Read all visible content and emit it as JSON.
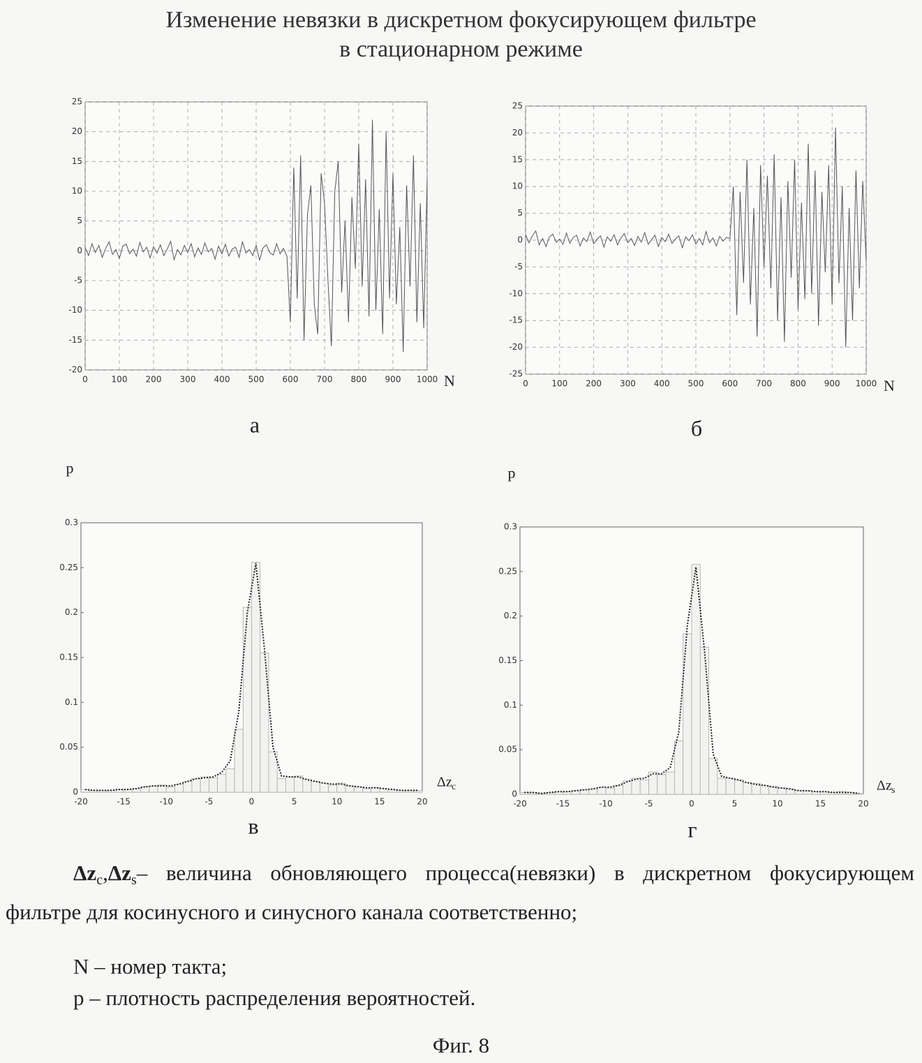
{
  "title": [
    "Изменение невязки в дискретном фокусирующем фильтре",
    "в стационарном режиме"
  ],
  "chart_data": [
    {
      "type": "line",
      "label": "а",
      "xlabel": "N",
      "grid": true,
      "color": "#555555",
      "xlim": [
        0,
        1000
      ],
      "xticks": [
        0,
        100,
        200,
        300,
        400,
        500,
        600,
        700,
        800,
        900,
        1000
      ],
      "ylim": [
        -20,
        25
      ],
      "yticks": [
        -20,
        -15,
        -10,
        -5,
        0,
        5,
        10,
        15,
        20,
        25
      ],
      "x": [
        0,
        10,
        20,
        30,
        40,
        50,
        60,
        70,
        80,
        90,
        100,
        110,
        120,
        130,
        140,
        150,
        160,
        170,
        180,
        190,
        200,
        210,
        220,
        230,
        240,
        250,
        260,
        270,
        280,
        290,
        300,
        310,
        320,
        330,
        340,
        350,
        360,
        370,
        380,
        390,
        400,
        410,
        420,
        430,
        440,
        450,
        460,
        470,
        480,
        490,
        500,
        510,
        520,
        530,
        540,
        550,
        560,
        570,
        580,
        590,
        600,
        610,
        620,
        630,
        640,
        650,
        660,
        670,
        680,
        690,
        700,
        710,
        720,
        730,
        740,
        750,
        760,
        770,
        780,
        790,
        800,
        810,
        820,
        830,
        840,
        850,
        860,
        870,
        880,
        890,
        900,
        910,
        920,
        930,
        940,
        950,
        960,
        970,
        980,
        990,
        1000
      ],
      "values": [
        0.5,
        -0.8,
        1.2,
        -0.3,
        0.9,
        -1.1,
        0.4,
        1.5,
        -0.6,
        0.2,
        -1.3,
        0.8,
        1.1,
        -0.5,
        0.3,
        -0.9,
        1.4,
        -0.2,
        0.6,
        -1.2,
        0.7,
        -0.4,
        1.0,
        -0.8,
        0.3,
        1.6,
        -1.5,
        0.2,
        -0.7,
        0.9,
        -0.3,
        1.2,
        -1.0,
        0.5,
        -0.6,
        1.3,
        -0.2,
        0.4,
        -1.4,
        0.8,
        -0.5,
        1.1,
        -0.9,
        0.3,
        0.6,
        -1.1,
        1.5,
        -0.4,
        0.2,
        -0.8,
        0.9,
        -1.6,
        0.5,
        1.0,
        -0.3,
        -0.7,
        1.2,
        -0.5,
        0.4,
        -0.9,
        -12,
        14,
        -8,
        16,
        -15,
        6,
        11,
        -9,
        -14,
        13,
        8,
        -5,
        -16,
        10,
        15,
        -7,
        5,
        -12,
        9,
        -3,
        18,
        -6,
        12,
        -11,
        22,
        -10,
        7,
        -14,
        20,
        -8,
        13,
        -9,
        4,
        -17,
        11,
        -6,
        16,
        -12,
        8,
        -13,
        12
      ]
    },
    {
      "type": "line",
      "label": "б",
      "xlabel": "N",
      "grid": true,
      "color": "#555555",
      "xlim": [
        0,
        1000
      ],
      "xticks": [
        0,
        100,
        200,
        300,
        400,
        500,
        600,
        700,
        800,
        900,
        1000
      ],
      "ylim": [
        -25,
        25
      ],
      "yticks": [
        -25,
        -20,
        -15,
        -10,
        -5,
        0,
        5,
        10,
        15,
        20,
        25
      ],
      "x": [
        0,
        10,
        20,
        30,
        40,
        50,
        60,
        70,
        80,
        90,
        100,
        110,
        120,
        130,
        140,
        150,
        160,
        170,
        180,
        190,
        200,
        210,
        220,
        230,
        240,
        250,
        260,
        270,
        280,
        290,
        300,
        310,
        320,
        330,
        340,
        350,
        360,
        370,
        380,
        390,
        400,
        410,
        420,
        430,
        440,
        450,
        460,
        470,
        480,
        490,
        500,
        510,
        520,
        530,
        540,
        550,
        560,
        570,
        580,
        590,
        600,
        610,
        620,
        630,
        640,
        650,
        660,
        670,
        680,
        690,
        700,
        710,
        720,
        730,
        740,
        750,
        760,
        770,
        780,
        790,
        800,
        810,
        820,
        830,
        840,
        850,
        860,
        870,
        880,
        890,
        900,
        910,
        920,
        930,
        940,
        950,
        960,
        970,
        980,
        990,
        1000
      ],
      "values": [
        1.0,
        -0.5,
        0.8,
        1.7,
        -0.9,
        0.3,
        -1.2,
        0.6,
        1.1,
        -0.4,
        0.2,
        -0.8,
        1.3,
        -0.6,
        0.5,
        0.9,
        -1.1,
        0.4,
        -0.3,
        1.5,
        -0.7,
        0.2,
        0.8,
        -1.3,
        0.6,
        -0.2,
        1.0,
        -0.9,
        0.4,
        1.2,
        -0.5,
        0.3,
        -1.0,
        0.7,
        -0.4,
        1.4,
        -0.8,
        0.1,
        0.9,
        -1.2,
        0.5,
        -0.3,
        1.1,
        -0.6,
        0.2,
        0.8,
        -1.4,
        0.6,
        -0.1,
        1.0,
        -0.7,
        0.3,
        -0.9,
        1.6,
        -0.5,
        0.4,
        -1.1,
        0.7,
        -0.2,
        0.5,
        0.3,
        10,
        -14,
        9,
        -8,
        15,
        -12,
        6,
        -18,
        14,
        -5,
        12,
        -9,
        16,
        -15,
        8,
        -19,
        11,
        -7,
        15,
        -13,
        7,
        -11,
        18,
        -10,
        13,
        -16,
        9,
        -6,
        14,
        -12,
        21,
        -8,
        10,
        -20,
        6,
        -15,
        13,
        -9,
        11,
        -4
      ]
    },
    {
      "type": "histogram",
      "label": "в",
      "ylabel": "p",
      "xlabel": {
        "main": "Δz",
        "sub": "c"
      },
      "grid": false,
      "color": "#aaaaaa",
      "curve_color": "#222222",
      "xlim": [
        -20,
        20
      ],
      "xticks": [
        -20,
        -15,
        -10,
        -5,
        0,
        5,
        10,
        15,
        20
      ],
      "ylim": [
        0,
        0.3
      ],
      "yticks": [
        0,
        0.05,
        0.1,
        0.15,
        0.2,
        0.25,
        0.3
      ],
      "bins": [
        -20,
        -19,
        -18,
        -17,
        -16,
        -15,
        -14,
        -13,
        -12,
        -11,
        -10,
        -9,
        -8,
        -7,
        -6,
        -5,
        -4,
        -3,
        -2,
        -1,
        0,
        1,
        2,
        3,
        4,
        5,
        6,
        7,
        8,
        9,
        10,
        11,
        12,
        13,
        14,
        15,
        16,
        17,
        18,
        19,
        20
      ],
      "values": [
        0.003,
        0.002,
        0.002,
        0.002,
        0.003,
        0.003,
        0.004,
        0.006,
        0.007,
        0.008,
        0.006,
        0.009,
        0.012,
        0.015,
        0.017,
        0.016,
        0.02,
        0.026,
        0.07,
        0.206,
        0.256,
        0.155,
        0.045,
        0.015,
        0.017,
        0.018,
        0.014,
        0.012,
        0.01,
        0.008,
        0.01,
        0.007,
        0.006,
        0.004,
        0.005,
        0.004,
        0.003,
        0.002,
        0.002,
        0.002
      ],
      "curve": {
        "x": [
          -19.5,
          -18.5,
          -17.5,
          -16.5,
          -15.5,
          -14.5,
          -13.5,
          -12.5,
          -11.5,
          -10.5,
          -9.5,
          -8.5,
          -7.5,
          -6.5,
          -5.5,
          -4.5,
          -3.5,
          -2.5,
          -1.5,
          -0.5,
          0.5,
          1.5,
          2.5,
          3.5,
          4.5,
          5.5,
          6.5,
          7.5,
          8.5,
          9.5,
          10.5,
          11.5,
          12.5,
          13.5,
          14.5,
          15.5,
          16.5,
          17.5,
          18.5,
          19.5
        ],
        "values": [
          0.003,
          0.002,
          0.002,
          0.002,
          0.003,
          0.003,
          0.004,
          0.006,
          0.007,
          0.007,
          0.007,
          0.009,
          0.012,
          0.015,
          0.016,
          0.017,
          0.022,
          0.035,
          0.09,
          0.2,
          0.255,
          0.16,
          0.05,
          0.018,
          0.017,
          0.017,
          0.014,
          0.012,
          0.01,
          0.009,
          0.009,
          0.007,
          0.006,
          0.005,
          0.005,
          0.004,
          0.003,
          0.002,
          0.002,
          0.002
        ]
      }
    },
    {
      "type": "histogram",
      "label": "г",
      "ylabel": "p",
      "xlabel": {
        "main": "Δz",
        "sub": "s"
      },
      "grid": false,
      "color": "#aaaaaa",
      "curve_color": "#222222",
      "xlim": [
        -20,
        20
      ],
      "xticks": [
        -20,
        -15,
        -10,
        -5,
        0,
        5,
        10,
        15,
        20
      ],
      "ylim": [
        0,
        0.3
      ],
      "yticks": [
        0,
        0.05,
        0.1,
        0.15,
        0.2,
        0.25,
        0.3
      ],
      "bins": [
        -20,
        -19,
        -18,
        -17,
        -16,
        -15,
        -14,
        -13,
        -12,
        -11,
        -10,
        -9,
        -8,
        -7,
        -6,
        -5,
        -4,
        -3,
        -2,
        -1,
        0,
        1,
        2,
        3,
        4,
        5,
        6,
        7,
        8,
        9,
        10,
        11,
        12,
        13,
        14,
        15,
        16,
        17,
        18,
        19,
        20
      ],
      "values": [
        0.002,
        0.002,
        0.001,
        0.002,
        0.003,
        0.003,
        0.004,
        0.005,
        0.006,
        0.008,
        0.007,
        0.01,
        0.015,
        0.018,
        0.016,
        0.025,
        0.022,
        0.025,
        0.06,
        0.18,
        0.258,
        0.165,
        0.04,
        0.018,
        0.018,
        0.016,
        0.013,
        0.012,
        0.01,
        0.009,
        0.007,
        0.006,
        0.004,
        0.004,
        0.003,
        0.003,
        0.002,
        0.003,
        0.002,
        0.001
      ],
      "curve": {
        "x": [
          -19.5,
          -18.5,
          -17.5,
          -16.5,
          -15.5,
          -14.5,
          -13.5,
          -12.5,
          -11.5,
          -10.5,
          -9.5,
          -8.5,
          -7.5,
          -6.5,
          -5.5,
          -4.5,
          -3.5,
          -2.5,
          -1.5,
          -0.5,
          0.5,
          1.5,
          2.5,
          3.5,
          4.5,
          5.5,
          6.5,
          7.5,
          8.5,
          9.5,
          10.5,
          11.5,
          12.5,
          13.5,
          14.5,
          15.5,
          16.5,
          17.5,
          18.5,
          19.5
        ],
        "values": [
          0.002,
          0.002,
          0.001,
          0.002,
          0.003,
          0.003,
          0.004,
          0.005,
          0.006,
          0.008,
          0.008,
          0.01,
          0.014,
          0.017,
          0.018,
          0.023,
          0.023,
          0.03,
          0.07,
          0.19,
          0.255,
          0.16,
          0.045,
          0.02,
          0.018,
          0.016,
          0.013,
          0.011,
          0.01,
          0.008,
          0.007,
          0.006,
          0.004,
          0.004,
          0.003,
          0.003,
          0.002,
          0.002,
          0.002,
          0.001
        ]
      }
    }
  ],
  "caption": {
    "definition": [
      {
        "text": "Δz",
        "sub": "c"
      },
      {
        "text": ","
      },
      {
        "text": "Δz",
        "sub": "s"
      },
      {
        "text": "– величина обновляющего процесса(невязки) в дискретном фокусирующем фильтре для косинусного и синусного канала соответственно;"
      }
    ],
    "lines": [
      "N – номер такта;",
      "p – плотность распределения вероятностей."
    ],
    "figure": "Фиг. 8"
  }
}
